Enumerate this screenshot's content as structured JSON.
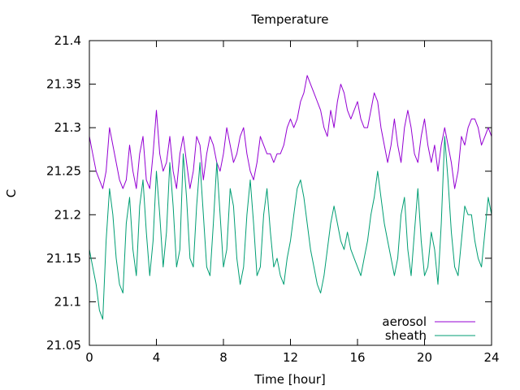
{
  "chart_data": {
    "type": "line",
    "title": "Temperature",
    "xlabel": "Time [hour]",
    "ylabel": "C",
    "xlim": [
      0,
      24
    ],
    "ylim": [
      21.05,
      21.4
    ],
    "x_ticks": [
      0,
      4,
      8,
      12,
      16,
      20,
      24
    ],
    "y_ticks": [
      21.05,
      21.1,
      21.15,
      21.2,
      21.25,
      21.3,
      21.35,
      21.4
    ],
    "x_tick_labels": [
      "0",
      "4",
      "8",
      "12",
      "16",
      "20",
      "24"
    ],
    "y_tick_labels": [
      "21.05",
      "21.1",
      "21.15",
      "21.2",
      "21.25",
      "21.3",
      "21.35",
      "21.4"
    ],
    "grid": false,
    "legend_position": "bottom-right",
    "series": [
      {
        "name": "aerosol",
        "color": "#9400d3",
        "x": [
          0,
          0.2,
          0.4,
          0.6,
          0.8,
          1.0,
          1.2,
          1.4,
          1.6,
          1.8,
          2.0,
          2.2,
          2.4,
          2.6,
          2.8,
          3.0,
          3.2,
          3.4,
          3.6,
          3.8,
          4.0,
          4.2,
          4.4,
          4.6,
          4.8,
          5.0,
          5.2,
          5.4,
          5.6,
          5.8,
          6.0,
          6.2,
          6.4,
          6.6,
          6.8,
          7.0,
          7.2,
          7.4,
          7.6,
          7.8,
          8.0,
          8.2,
          8.4,
          8.6,
          8.8,
          9.0,
          9.2,
          9.4,
          9.6,
          9.8,
          10.0,
          10.2,
          10.4,
          10.6,
          10.8,
          11.0,
          11.2,
          11.4,
          11.6,
          11.8,
          12.0,
          12.2,
          12.4,
          12.6,
          12.8,
          13.0,
          13.2,
          13.4,
          13.6,
          13.8,
          14.0,
          14.2,
          14.4,
          14.6,
          14.8,
          15.0,
          15.2,
          15.4,
          15.6,
          15.8,
          16.0,
          16.2,
          16.4,
          16.6,
          16.8,
          17.0,
          17.2,
          17.4,
          17.6,
          17.8,
          18.0,
          18.2,
          18.4,
          18.6,
          18.8,
          19.0,
          19.2,
          19.4,
          19.6,
          19.8,
          20.0,
          20.2,
          20.4,
          20.6,
          20.8,
          21.0,
          21.2,
          21.4,
          21.6,
          21.8,
          22.0,
          22.2,
          22.4,
          22.6,
          22.8,
          23.0,
          23.2,
          23.4,
          23.6,
          23.8,
          24.0
        ],
        "y": [
          21.29,
          21.27,
          21.25,
          21.24,
          21.23,
          21.25,
          21.3,
          21.28,
          21.26,
          21.24,
          21.23,
          21.24,
          21.28,
          21.25,
          21.23,
          21.27,
          21.29,
          21.24,
          21.23,
          21.27,
          21.32,
          21.27,
          21.25,
          21.26,
          21.29,
          21.25,
          21.23,
          21.27,
          21.29,
          21.26,
          21.23,
          21.25,
          21.29,
          21.28,
          21.24,
          21.27,
          21.29,
          21.28,
          21.26,
          21.25,
          21.27,
          21.3,
          21.28,
          21.26,
          21.27,
          21.29,
          21.3,
          21.27,
          21.25,
          21.24,
          21.26,
          21.29,
          21.28,
          21.27,
          21.27,
          21.26,
          21.27,
          21.27,
          21.28,
          21.3,
          21.31,
          21.3,
          21.31,
          21.33,
          21.34,
          21.36,
          21.35,
          21.34,
          21.33,
          21.32,
          21.3,
          21.29,
          21.32,
          21.3,
          21.33,
          21.35,
          21.34,
          21.32,
          21.31,
          21.32,
          21.33,
          21.31,
          21.3,
          21.3,
          21.32,
          21.34,
          21.33,
          21.3,
          21.28,
          21.26,
          21.28,
          21.31,
          21.28,
          21.26,
          21.3,
          21.32,
          21.3,
          21.27,
          21.26,
          21.29,
          21.31,
          21.28,
          21.26,
          21.28,
          21.25,
          21.28,
          21.3,
          21.28,
          21.26,
          21.23,
          21.25,
          21.29,
          21.28,
          21.3,
          21.31,
          21.31,
          21.3,
          21.28,
          21.29,
          21.3,
          21.29
        ],
        "notes_sampling": "approximate, read at 0.2 h"
      },
      {
        "name": "sheath",
        "color": "#009e73",
        "x": [
          0,
          0.2,
          0.4,
          0.6,
          0.8,
          1.0,
          1.2,
          1.4,
          1.6,
          1.8,
          2.0,
          2.2,
          2.4,
          2.6,
          2.8,
          3.0,
          3.2,
          3.4,
          3.6,
          3.8,
          4.0,
          4.2,
          4.4,
          4.6,
          4.8,
          5.0,
          5.2,
          5.4,
          5.6,
          5.8,
          6.0,
          6.2,
          6.4,
          6.6,
          6.8,
          7.0,
          7.2,
          7.4,
          7.6,
          7.8,
          8.0,
          8.2,
          8.4,
          8.6,
          8.8,
          9.0,
          9.2,
          9.4,
          9.6,
          9.8,
          10.0,
          10.2,
          10.4,
          10.6,
          10.8,
          11.0,
          11.2,
          11.4,
          11.6,
          11.8,
          12.0,
          12.2,
          12.4,
          12.6,
          12.8,
          13.0,
          13.2,
          13.4,
          13.6,
          13.8,
          14.0,
          14.2,
          14.4,
          14.6,
          14.8,
          15.0,
          15.2,
          15.4,
          15.6,
          15.8,
          16.0,
          16.2,
          16.4,
          16.6,
          16.8,
          17.0,
          17.2,
          17.4,
          17.6,
          17.8,
          18.0,
          18.2,
          18.4,
          18.6,
          18.8,
          19.0,
          19.2,
          19.4,
          19.6,
          19.8,
          20.0,
          20.2,
          20.4,
          20.6,
          20.8,
          21.0,
          21.2,
          21.4,
          21.6,
          21.8,
          22.0,
          22.2,
          22.4,
          22.6,
          22.8,
          23.0,
          23.2,
          23.4,
          23.6,
          23.8,
          24.0
        ],
        "y": [
          21.16,
          21.14,
          21.12,
          21.09,
          21.08,
          21.17,
          21.23,
          21.2,
          21.15,
          21.12,
          21.11,
          21.19,
          21.22,
          21.16,
          21.13,
          21.21,
          21.24,
          21.18,
          21.13,
          21.17,
          21.25,
          21.2,
          21.14,
          21.18,
          21.26,
          21.21,
          21.14,
          21.16,
          21.27,
          21.22,
          21.15,
          21.14,
          21.21,
          21.26,
          21.2,
          21.14,
          21.13,
          21.19,
          21.26,
          21.2,
          21.14,
          21.16,
          21.23,
          21.21,
          21.15,
          21.12,
          21.14,
          21.2,
          21.24,
          21.19,
          21.13,
          21.14,
          21.2,
          21.23,
          21.18,
          21.14,
          21.15,
          21.13,
          21.12,
          21.15,
          21.17,
          21.2,
          21.23,
          21.24,
          21.22,
          21.19,
          21.16,
          21.14,
          21.12,
          21.11,
          21.13,
          21.16,
          21.19,
          21.21,
          21.19,
          21.17,
          21.16,
          21.18,
          21.16,
          21.15,
          21.14,
          21.13,
          21.15,
          21.17,
          21.2,
          21.22,
          21.25,
          21.22,
          21.19,
          21.17,
          21.15,
          21.13,
          21.15,
          21.2,
          21.22,
          21.16,
          21.13,
          21.18,
          21.23,
          21.17,
          21.13,
          21.14,
          21.18,
          21.16,
          21.12,
          21.19,
          21.29,
          21.24,
          21.18,
          21.14,
          21.13,
          21.17,
          21.21,
          21.2,
          21.2,
          21.17,
          21.15,
          21.14,
          21.18,
          21.22,
          21.2
        ],
        "notes_sampling": "approximate, read at 0.2 h"
      }
    ]
  }
}
